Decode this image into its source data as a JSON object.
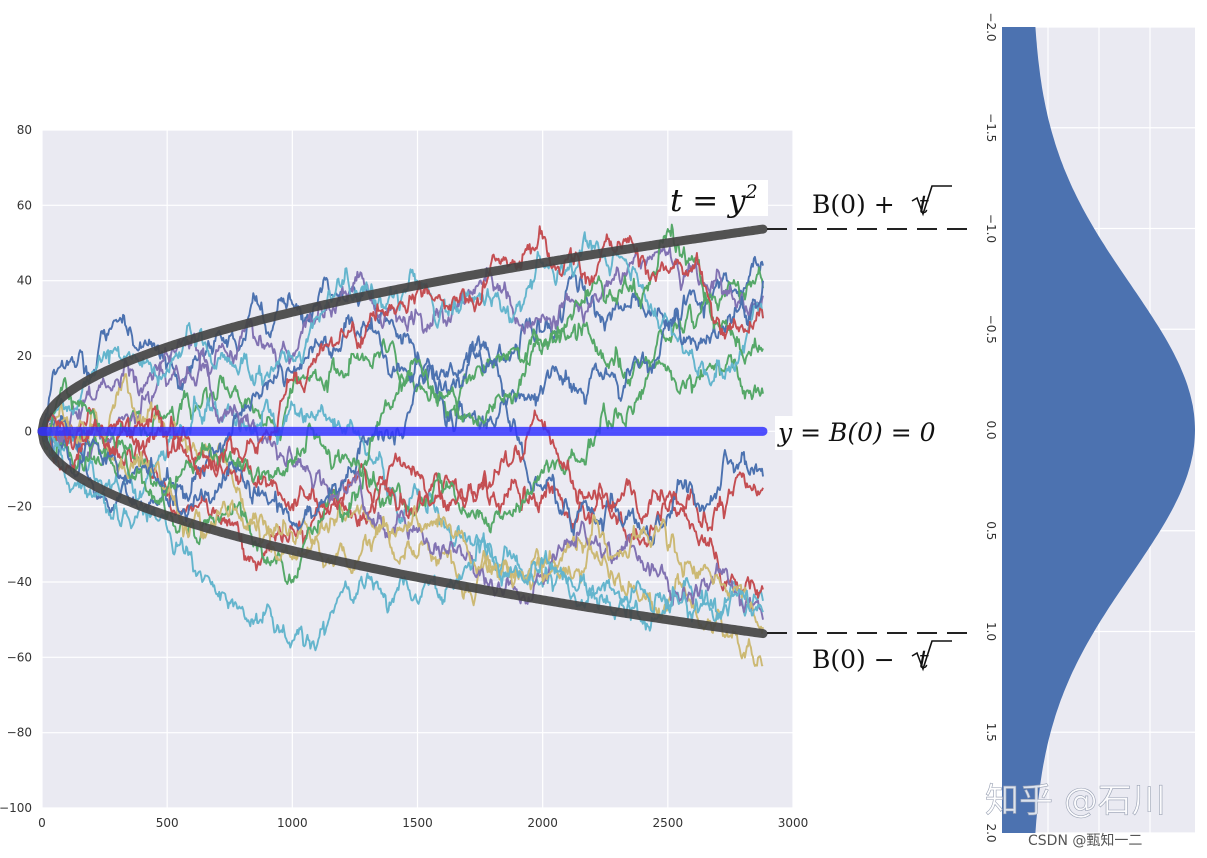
{
  "chart_data": [
    {
      "type": "line",
      "title": "",
      "xlabel": "",
      "ylabel": "",
      "xlim": [
        0,
        3000
      ],
      "ylim": [
        -100,
        80
      ],
      "x_ticks": [
        "0",
        "500",
        "1000",
        "1500",
        "2000",
        "2500",
        "3000"
      ],
      "y_ticks": [
        "80",
        "60",
        "40",
        "20",
        "0",
        "−20",
        "−40",
        "−60",
        "−80",
        "−100"
      ],
      "grid": true,
      "n_steps": 2880,
      "series_colors": [
        "#4c72b0",
        "#55a868",
        "#c44e52",
        "#8172b2",
        "#ccb974",
        "#64b5cd",
        "#4c72b0",
        "#55a868",
        "#c44e52",
        "#8172b2",
        "#ccb974",
        "#64b5cd",
        "#4c72b0",
        "#55a868",
        "#c44e52",
        "#64b5cd"
      ],
      "random_walk_endpoints": [
        44,
        38,
        -15,
        36,
        -62,
        -45,
        -12,
        10,
        -42,
        -50,
        -52,
        30,
        40,
        22,
        30,
        -48
      ],
      "envelope": {
        "formula": "y = ±√t",
        "color": "#444444",
        "x_max": 2880,
        "upper_end": 53.7,
        "lower_end": -53.7
      },
      "baseline": {
        "y": 0,
        "color": "#3333ff"
      },
      "annotations": {
        "parabola_lhs": "t = y",
        "parabola_exp": "2",
        "upper": "B(0) + ",
        "upper_radicand": "t",
        "baseline": "y = B(0) = 0",
        "lower": "B(0) − ",
        "lower_radicand": "t"
      }
    },
    {
      "type": "area",
      "orientation": "vertical",
      "distribution": "normal",
      "mean": 0,
      "sigma": 0.72,
      "ylim": [
        -2.0,
        2.0
      ],
      "y_ticks": [
        "−2.0",
        "−1.5",
        "−1.0",
        "−0.5",
        "0.0",
        "0.5",
        "1.0",
        "1.5",
        "2.0"
      ],
      "fill_color": "#4c72b0",
      "grid": true
    }
  ],
  "watermark": {
    "primary": "知乎 @石川",
    "secondary": "CSDN @甄知一二"
  }
}
